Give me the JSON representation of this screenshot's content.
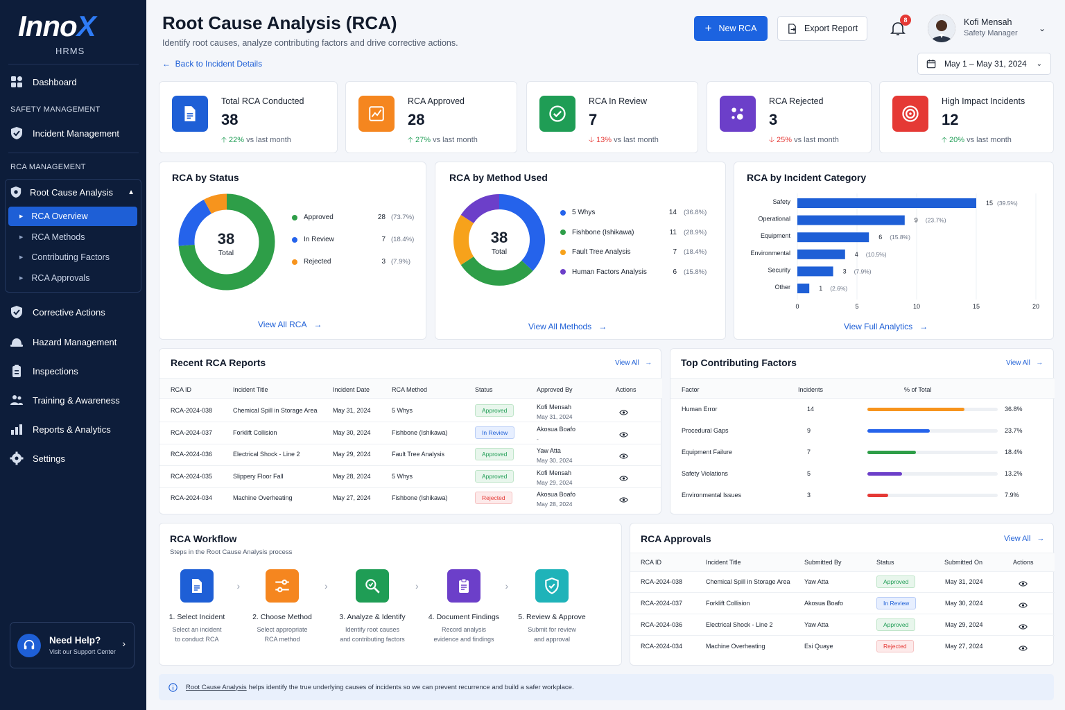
{
  "app": {
    "logo_main": "Inno",
    "logo_x": "X",
    "logo_sub": "HRMS"
  },
  "sidebar": {
    "dashboard": "Dashboard",
    "section_safety": "SAFETY MANAGEMENT",
    "incident": "Incident Management",
    "section_rca": "RCA MANAGEMENT",
    "rca": "Root Cause Analysis",
    "sub": [
      "RCA Overview",
      "RCA Methods",
      "Contributing Factors",
      "RCA Approvals"
    ],
    "items": [
      "Corrective Actions",
      "Hazard Management",
      "Inspections",
      "Training & Awareness",
      "Reports & Analytics",
      "Settings"
    ],
    "help_title": "Need Help?",
    "help_sub": "Visit our Support Center"
  },
  "header": {
    "title": "Root Cause Analysis (RCA)",
    "subtitle": "Identify root causes, analyze contributing factors and drive corrective actions.",
    "back": "Back to Incident Details",
    "new_rca": "New RCA",
    "export": "Export Report",
    "notif_count": "8",
    "user_name": "Kofi Mensah",
    "user_role": "Safety Manager",
    "date_range": "May 1 – May 31, 2024"
  },
  "kpis": [
    {
      "label": "Total RCA Conducted",
      "value": "38",
      "change": "22%",
      "suffix": "vs last month",
      "dir": "up",
      "color": "#1e5fd6"
    },
    {
      "label": "RCA Approved",
      "value": "28",
      "change": "27%",
      "suffix": "vs last month",
      "dir": "up",
      "color": "#f5861f"
    },
    {
      "label": "RCA In Review",
      "value": "7",
      "change": "13%",
      "suffix": "vs last month",
      "dir": "down",
      "color": "#1f9d55"
    },
    {
      "label": "RCA Rejected",
      "value": "3",
      "change": "25%",
      "suffix": "vs last month",
      "dir": "down",
      "color": "#6c3fc9"
    },
    {
      "label": "High Impact Incidents",
      "value": "12",
      "change": "20%",
      "suffix": "vs last month",
      "dir": "up",
      "color": "#e53935"
    }
  ],
  "status_chart": {
    "title": "RCA by Status",
    "total": "38",
    "total_label": "Total",
    "link": "View All RCA",
    "items": [
      {
        "name": "Approved",
        "value": 28,
        "pct": "(73.7%)",
        "color": "#2e9e48"
      },
      {
        "name": "In Review",
        "value": 7,
        "pct": "(18.4%)",
        "color": "#2563eb"
      },
      {
        "name": "Rejected",
        "value": 3,
        "pct": "(7.9%)",
        "color": "#f7941d"
      }
    ]
  },
  "method_chart": {
    "title": "RCA by Method Used",
    "total": "38",
    "total_label": "Total",
    "link": "View All Methods",
    "items": [
      {
        "name": "5 Whys",
        "value": 14,
        "pct": "(36.8%)",
        "color": "#2563eb"
      },
      {
        "name": "Fishbone (Ishikawa)",
        "value": 11,
        "pct": "(28.9%)",
        "color": "#2e9e48"
      },
      {
        "name": "Fault Tree Analysis",
        "value": 7,
        "pct": "(18.4%)",
        "color": "#f7a21b"
      },
      {
        "name": "Human Factors Analysis",
        "value": 6,
        "pct": "(15.8%)",
        "color": "#6c3fc9"
      }
    ]
  },
  "chart_data": {
    "type": "bar",
    "title": "RCA by Incident Category",
    "categories": [
      "Safety",
      "Operational",
      "Equipment",
      "Environmental",
      "Security",
      "Other"
    ],
    "values": [
      15,
      9,
      6,
      4,
      3,
      1
    ],
    "labels": [
      "(39.5%)",
      "(23.7%)",
      "(15.8%)",
      "(10.5%)",
      "(7.9%)",
      "(2.6%)"
    ],
    "xlim": [
      0,
      20
    ],
    "xticks": [
      "0",
      "5",
      "10",
      "15",
      "20"
    ],
    "color": "#1e5fd6",
    "link": "View Full Analytics"
  },
  "recent": {
    "title": "Recent RCA Reports",
    "view_all": "View All",
    "headers": [
      "RCA ID",
      "Incident Title",
      "Incident Date",
      "RCA Method",
      "Status",
      "Approved By",
      "Actions"
    ],
    "rows": [
      {
        "id": "RCA-2024-038",
        "title": "Chemical Spill in Storage Area",
        "date": "May 31, 2024",
        "method": "5 Whys",
        "status": "Approved",
        "by": "Kofi Mensah",
        "by_date": "May 31, 2024"
      },
      {
        "id": "RCA-2024-037",
        "title": "Forklift Collision",
        "date": "May 30, 2024",
        "method": "Fishbone (Ishikawa)",
        "status": "In Review",
        "by": "Akosua Boafo",
        "by_date": "-"
      },
      {
        "id": "RCA-2024-036",
        "title": "Electrical Shock - Line 2",
        "date": "May 29, 2024",
        "method": "Fault Tree Analysis",
        "status": "Approved",
        "by": "Yaw Atta",
        "by_date": "May 30, 2024"
      },
      {
        "id": "RCA-2024-035",
        "title": "Slippery Floor Fall",
        "date": "May 28, 2024",
        "method": "5 Whys",
        "status": "Approved",
        "by": "Kofi Mensah",
        "by_date": "May 29, 2024"
      },
      {
        "id": "RCA-2024-034",
        "title": "Machine Overheating",
        "date": "May 27, 2024",
        "method": "Fishbone (Ishikawa)",
        "status": "Rejected",
        "by": "Akosua Boafo",
        "by_date": "May 28, 2024"
      }
    ]
  },
  "factors": {
    "title": "Top Contributing Factors",
    "view_all": "View All",
    "headers": [
      "Factor",
      "Incidents",
      "% of Total"
    ],
    "rows": [
      {
        "name": "Human Error",
        "value": 14,
        "pct": "36.8%",
        "share": 0.368,
        "color": "#f7941d"
      },
      {
        "name": "Procedural Gaps",
        "value": 9,
        "pct": "23.7%",
        "share": 0.237,
        "color": "#2563eb"
      },
      {
        "name": "Equipment Failure",
        "value": 7,
        "pct": "18.4%",
        "share": 0.184,
        "color": "#2e9e48"
      },
      {
        "name": "Safety Violations",
        "value": 5,
        "pct": "13.2%",
        "share": 0.132,
        "color": "#6c3fc9"
      },
      {
        "name": "Environmental Issues",
        "value": 3,
        "pct": "7.9%",
        "share": 0.079,
        "color": "#e53935"
      }
    ]
  },
  "workflow": {
    "title": "RCA Workflow",
    "subtitle": "Steps in the Root Cause Analysis process",
    "steps": [
      {
        "title": "1. Select Incident",
        "d1": "Select an incident",
        "d2": "to conduct RCA",
        "color": "#1e5fd6"
      },
      {
        "title": "2. Choose Method",
        "d1": "Select appropriate",
        "d2": "RCA method",
        "color": "#f5861f"
      },
      {
        "title": "3. Analyze & Identify",
        "d1": "Identify root causes",
        "d2": "and contributing factors",
        "color": "#1f9d55"
      },
      {
        "title": "4. Document Findings",
        "d1": "Record analysis",
        "d2": "evidence and findings",
        "color": "#6c3fc9"
      },
      {
        "title": "5. Review & Approve",
        "d1": "Submit for review",
        "d2": "and approval",
        "color": "#1fb3b9"
      }
    ]
  },
  "approvals": {
    "title": "RCA Approvals",
    "view_all": "View All",
    "headers": [
      "RCA ID",
      "Incident Title",
      "Submitted By",
      "Status",
      "Submitted On",
      "Actions"
    ],
    "rows": [
      {
        "id": "RCA-2024-038",
        "title": "Chemical Spill in Storage Area",
        "by": "Yaw Atta",
        "status": "Approved",
        "on": "May 31, 2024"
      },
      {
        "id": "RCA-2024-037",
        "title": "Forklift Collision",
        "by": "Akosua Boafo",
        "status": "In Review",
        "on": "May 30, 2024"
      },
      {
        "id": "RCA-2024-036",
        "title": "Electrical Shock - Line 2",
        "by": "Yaw Atta",
        "status": "Approved",
        "on": "May 29, 2024"
      },
      {
        "id": "RCA-2024-034",
        "title": "Machine Overheating",
        "by": "Esi Quaye",
        "status": "Rejected",
        "on": "May 27, 2024"
      }
    ]
  },
  "footer": {
    "link": "Root Cause Analysis",
    "text": "helps identify the true underlying causes of incidents so we can prevent recurrence and build a safer workplace."
  }
}
